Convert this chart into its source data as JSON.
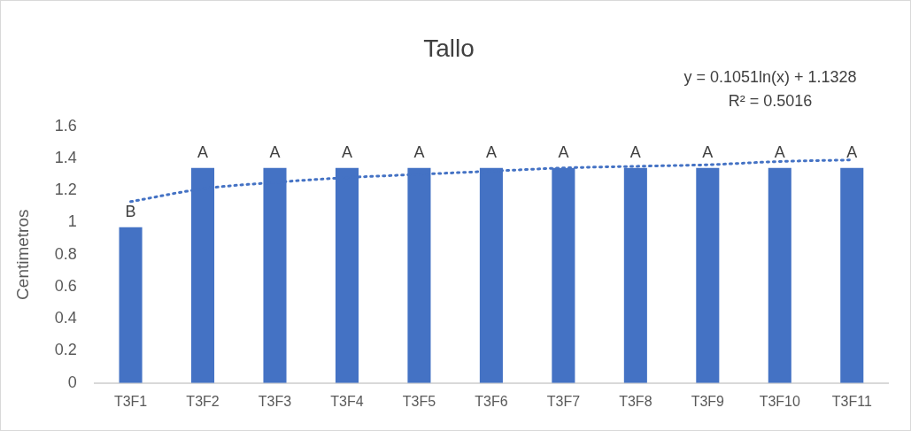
{
  "chart_data": {
    "type": "bar",
    "title": "Tallo",
    "ylabel": "Centimetros",
    "categories": [
      "T3F1",
      "T3F2",
      "T3F3",
      "T3F4",
      "T3F5",
      "T3F6",
      "T3F7",
      "T3F8",
      "T3F9",
      "T3F10",
      "T3F11"
    ],
    "series": [
      {
        "color": "#4472c4",
        "values": [
          0.97,
          1.34,
          1.34,
          1.34,
          1.34,
          1.34,
          1.34,
          1.34,
          1.34,
          1.34,
          1.34
        ],
        "value_labels": [
          "B",
          "A",
          "A",
          "A",
          "A",
          "A",
          "A",
          "A",
          "A",
          "A",
          "A"
        ]
      },
      {
        "type": "line",
        "color": "#4472c4",
        "line_style": "dotted",
        "marker": "none",
        "values": [
          1.13,
          1.21,
          1.25,
          1.28,
          1.3,
          1.32,
          1.34,
          1.35,
          1.36,
          1.38,
          1.39
        ]
      }
    ],
    "ylim": [
      0,
      1.6
    ],
    "yticks": [
      0,
      0.2,
      0.4,
      0.6,
      0.8,
      1,
      1.2,
      1.4,
      1.6
    ],
    "grid": false,
    "legend": false,
    "annotations": [
      "y = 0.1051ln(x) + 1.1328",
      "R² = 0.5016"
    ]
  }
}
